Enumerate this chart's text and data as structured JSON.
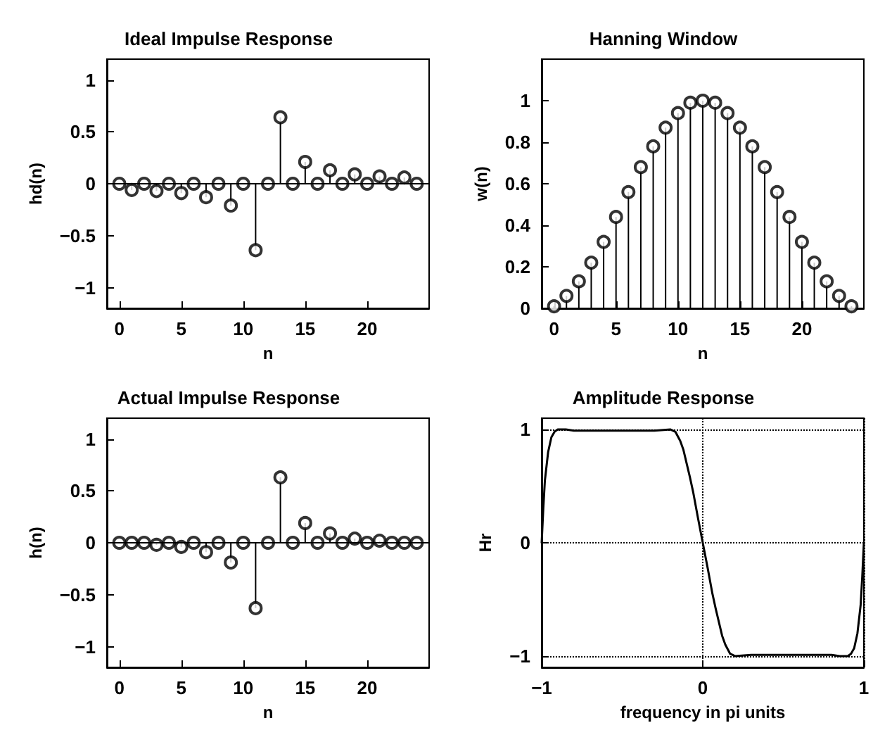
{
  "chart_data": [
    {
      "type": "lollipop",
      "title": "Ideal Impulse Response",
      "xlabel": "n",
      "ylabel": "hd(n)",
      "x": [
        0,
        1,
        2,
        3,
        4,
        5,
        6,
        7,
        8,
        9,
        10,
        11,
        12,
        13,
        14,
        15,
        16,
        17,
        18,
        19,
        20,
        21,
        22,
        23,
        24
      ],
      "values": [
        0,
        -0.06,
        0,
        -0.07,
        0,
        -0.09,
        0,
        -0.13,
        0,
        -0.21,
        0,
        -0.64,
        0,
        0.64,
        0,
        0.21,
        0,
        0.13,
        0,
        0.09,
        0,
        0.07,
        0,
        0.06,
        0
      ],
      "color": "#000000",
      "marker": "circle",
      "xlim": [
        -1,
        25
      ],
      "xticks": [
        0,
        5,
        10,
        15,
        20
      ],
      "ylim": [
        -1.2,
        1.2
      ],
      "yticks": [
        -1,
        -0.5,
        0,
        0.5,
        1
      ],
      "ref_lines": [
        {
          "axis": "y",
          "value": 0
        }
      ]
    },
    {
      "type": "lollipop",
      "title": "Hanning Window",
      "xlabel": "n",
      "ylabel": "w(n)",
      "x": [
        0,
        1,
        2,
        3,
        4,
        5,
        6,
        7,
        8,
        9,
        10,
        11,
        12,
        13,
        14,
        15,
        16,
        17,
        18,
        19,
        20,
        21,
        22,
        23,
        24
      ],
      "values": [
        0.01,
        0.06,
        0.13,
        0.22,
        0.32,
        0.44,
        0.56,
        0.68,
        0.78,
        0.87,
        0.94,
        0.99,
        1,
        0.99,
        0.94,
        0.87,
        0.78,
        0.68,
        0.56,
        0.44,
        0.32,
        0.22,
        0.13,
        0.06,
        0.01
      ],
      "color": "#000000",
      "marker": "circle",
      "xlim": [
        -1,
        25
      ],
      "xticks": [
        0,
        5,
        10,
        15,
        20
      ],
      "ylim": [
        0,
        1.2
      ],
      "yticks": [
        0,
        0.2,
        0.4,
        0.6,
        0.8,
        1
      ]
    },
    {
      "type": "lollipop",
      "title": "Actual Impulse Response",
      "xlabel": "n",
      "ylabel": "h(n)",
      "x": [
        0,
        1,
        2,
        3,
        4,
        5,
        6,
        7,
        8,
        9,
        10,
        11,
        12,
        13,
        14,
        15,
        16,
        17,
        18,
        19,
        20,
        21,
        22,
        23,
        24
      ],
      "values": [
        0,
        0,
        0,
        -0.02,
        0,
        -0.04,
        0,
        -0.09,
        0,
        -0.19,
        0,
        -0.63,
        0,
        0.63,
        0,
        0.19,
        0,
        0.09,
        0,
        0.04,
        0,
        0.02,
        0,
        0,
        0
      ],
      "color": "#000000",
      "marker": "circle",
      "xlim": [
        -1,
        25
      ],
      "xticks": [
        0,
        5,
        10,
        15,
        20
      ],
      "ylim": [
        -1.2,
        1.2
      ],
      "yticks": [
        -1,
        -0.5,
        0,
        0.5,
        1
      ],
      "ref_lines": [
        {
          "axis": "y",
          "value": 0
        }
      ]
    },
    {
      "type": "line",
      "title": "Amplitude Response",
      "xlabel": "frequency in pi units",
      "ylabel": "Hr",
      "x": [
        -1,
        -0.99,
        -0.98,
        -0.96,
        -0.94,
        -0.92,
        -0.9,
        -0.85,
        -0.8,
        -0.7,
        -0.6,
        -0.5,
        -0.4,
        -0.3,
        -0.2,
        -0.17,
        -0.14,
        -0.12,
        -0.1,
        -0.08,
        -0.06,
        -0.03,
        0,
        0.03,
        0.06,
        0.08,
        0.1,
        0.12,
        0.14,
        0.17,
        0.2,
        0.3,
        0.4,
        0.5,
        0.6,
        0.7,
        0.8,
        0.85,
        0.9,
        0.92,
        0.94,
        0.96,
        0.98,
        0.99,
        1
      ],
      "values": [
        0,
        0.3,
        0.55,
        0.8,
        0.93,
        0.98,
        1,
        1,
        0.99,
        0.99,
        0.99,
        0.99,
        0.99,
        0.99,
        1,
        0.98,
        0.9,
        0.82,
        0.7,
        0.58,
        0.45,
        0.22,
        0,
        -0.22,
        -0.45,
        -0.58,
        -0.7,
        -0.82,
        -0.9,
        -0.98,
        -1,
        -0.99,
        -0.99,
        -0.99,
        -0.99,
        -0.99,
        -0.99,
        -1,
        -1,
        -0.98,
        -0.93,
        -0.8,
        -0.55,
        -0.3,
        0
      ],
      "color": "#000000",
      "grid": true,
      "line_style": "solid",
      "xlim": [
        -1,
        1
      ],
      "xticks": [
        -1,
        0,
        1
      ],
      "ylim": [
        -1.1,
        1.1
      ],
      "yticks": [
        -1,
        0,
        1
      ]
    }
  ]
}
